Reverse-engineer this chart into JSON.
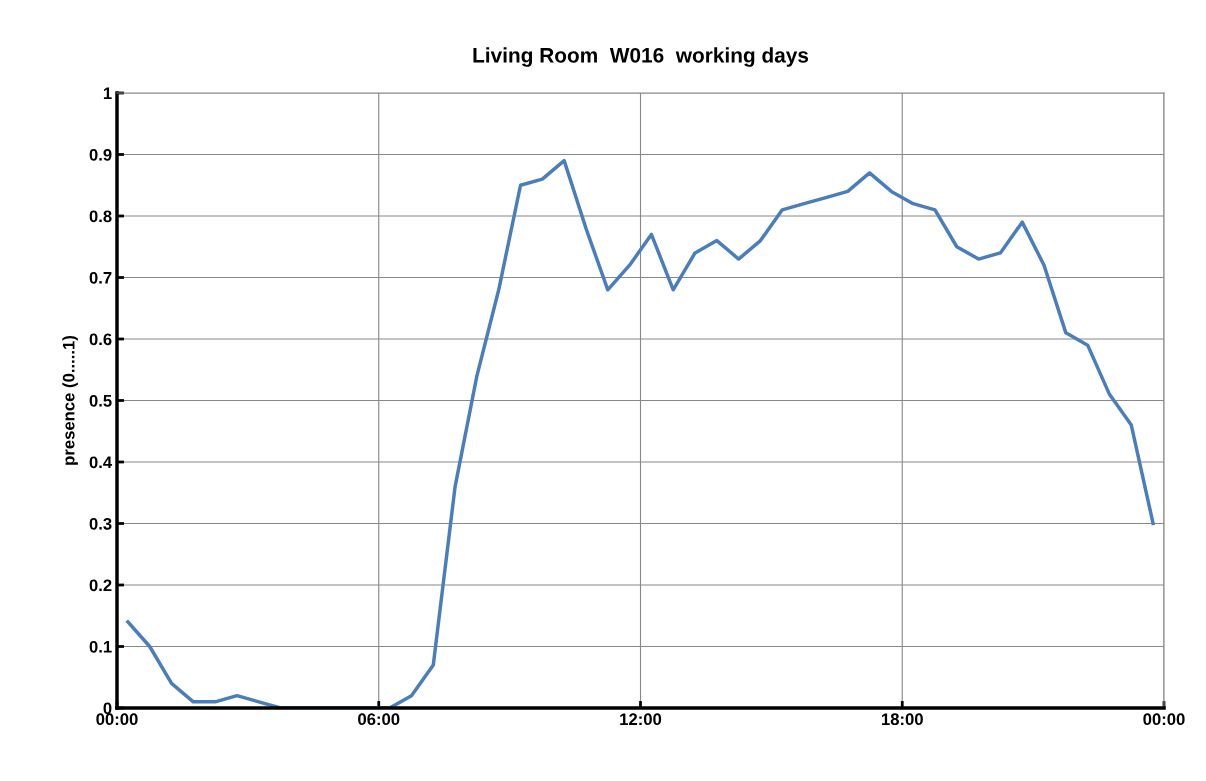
{
  "chart_data": {
    "type": "line",
    "title": "Living Room  W016  working days",
    "ylabel": "presence (0.....1)",
    "x": [
      0.25,
      0.75,
      1.25,
      1.75,
      2.25,
      2.75,
      3.25,
      3.75,
      4.25,
      4.75,
      5.25,
      5.75,
      6.25,
      6.75,
      7.25,
      7.75,
      8.25,
      8.75,
      9.25,
      9.75,
      10.25,
      10.75,
      11.25,
      11.75,
      12.25,
      12.75,
      13.25,
      13.75,
      14.25,
      14.75,
      15.25,
      15.75,
      16.25,
      16.75,
      17.25,
      17.75,
      18.25,
      18.75,
      19.25,
      19.75,
      20.25,
      20.75,
      21.25,
      21.75,
      22.25,
      22.75,
      23.25,
      23.75
    ],
    "series": [
      {
        "color": "#4a7ebb",
        "values": [
          0.14,
          0.1,
          0.04,
          0.01,
          0.01,
          0.02,
          0.01,
          0,
          0,
          0,
          0,
          0,
          0,
          0.02,
          0.07,
          0.36,
          0.54,
          0.68,
          0.85,
          0.86,
          0.89,
          0.78,
          0.68,
          0.72,
          0.77,
          0.68,
          0.74,
          0.76,
          0.73,
          0.76,
          0.81,
          0.82,
          0.83,
          0.84,
          0.87,
          0.84,
          0.82,
          0.81,
          0.75,
          0.73,
          0.74,
          0.79,
          0.72,
          0.61,
          0.59,
          0.51,
          0.46,
          0.3
        ]
      }
    ],
    "xlim": [
      0,
      24
    ],
    "xticks": [
      {
        "value": 0,
        "label": "00:00"
      },
      {
        "value": 6,
        "label": "06:00"
      },
      {
        "value": 12,
        "label": "12:00"
      },
      {
        "value": 18,
        "label": "18:00"
      },
      {
        "value": 24,
        "label": "00:00"
      }
    ],
    "ylim": [
      0,
      1
    ],
    "yticks": [
      0,
      0.1,
      0.2,
      0.3,
      0.4,
      0.5,
      0.6,
      0.7,
      0.8,
      0.9,
      1
    ],
    "grid": true,
    "marker": "none",
    "line_style": "solid",
    "legend": false
  }
}
